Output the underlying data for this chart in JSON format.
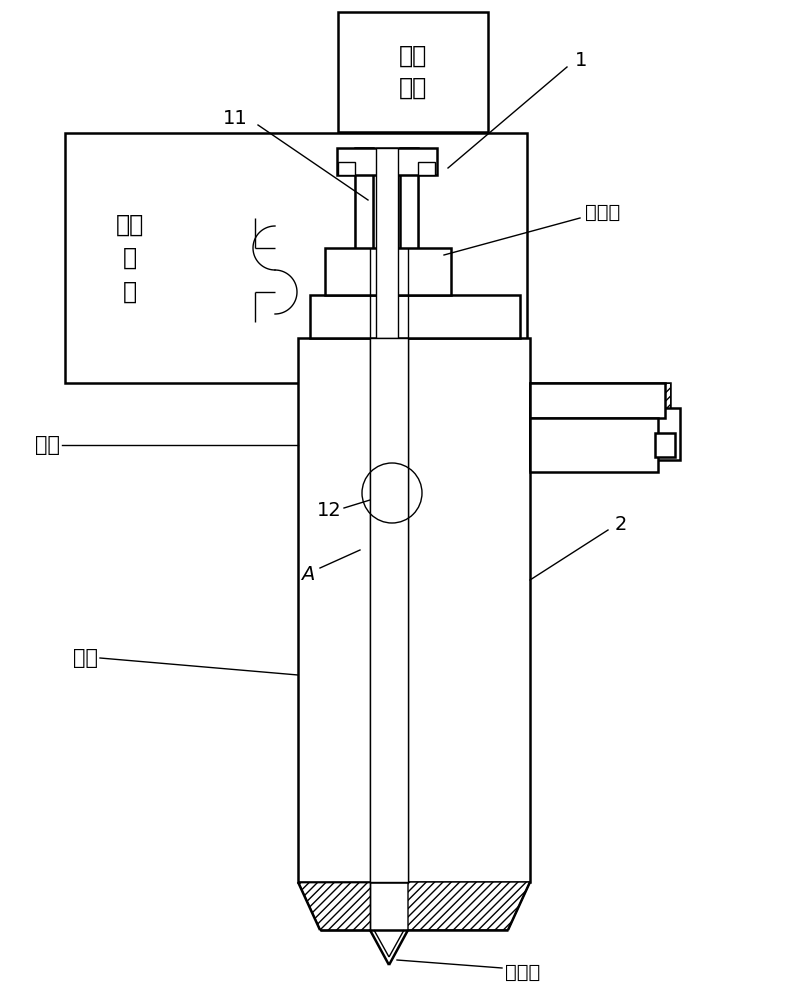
{
  "bg_color": "#ffffff",
  "line_color": "#000000",
  "labels": {
    "drive_device": "驱动\n装置",
    "hot_runner_plate": "热流\n道\n板",
    "flow_channel": "流道",
    "valve_needle_sleeve": "阀针套",
    "needle_valve": "针阀",
    "outlet": "出胶口",
    "num_1": "1",
    "num_11": "11",
    "num_12": "12",
    "num_2": "2",
    "letter_A": "A"
  },
  "figsize": [
    7.98,
    10.0
  ],
  "dpi": 100
}
